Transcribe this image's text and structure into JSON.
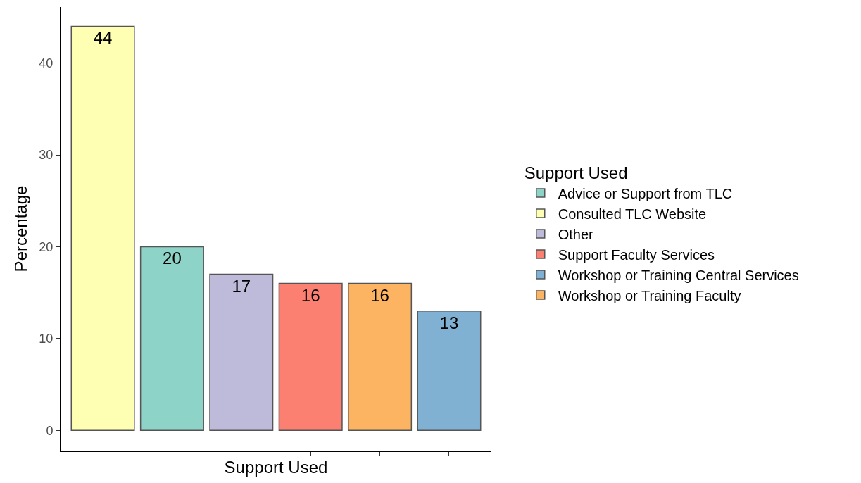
{
  "chart_data": {
    "type": "bar",
    "xlabel": "Support Used",
    "ylabel": "Percentage",
    "legend_title": "Support Used",
    "categories": [
      null,
      null,
      null,
      null,
      null,
      null
    ],
    "series": [
      {
        "name": "Advice or Support from TLC",
        "color": "#8dd3c7",
        "values": [
          null,
          20,
          null,
          null,
          null,
          null
        ]
      },
      {
        "name": "Consulted TLC Website",
        "color": "#ffffb3",
        "values": [
          44,
          null,
          null,
          null,
          null,
          null
        ]
      },
      {
        "name": "Other",
        "color": "#bebada",
        "values": [
          null,
          null,
          17,
          null,
          null,
          null
        ]
      },
      {
        "name": "Support Faculty Services",
        "color": "#fb8072",
        "values": [
          null,
          null,
          null,
          16,
          null,
          null
        ]
      },
      {
        "name": "Workshop or Training Central Services",
        "color": "#80b1d3",
        "values": [
          null,
          null,
          null,
          null,
          null,
          13
        ]
      },
      {
        "name": "Workshop or Training Faculty",
        "color": "#fdb462",
        "values": [
          null,
          null,
          null,
          null,
          16,
          null
        ]
      }
    ],
    "ylim": [
      -2.2,
      46.1
    ],
    "yticks": [
      0,
      10,
      20,
      30,
      40
    ],
    "data_labels": true,
    "legend": "right",
    "tick_labels": "y",
    "grid": false
  }
}
